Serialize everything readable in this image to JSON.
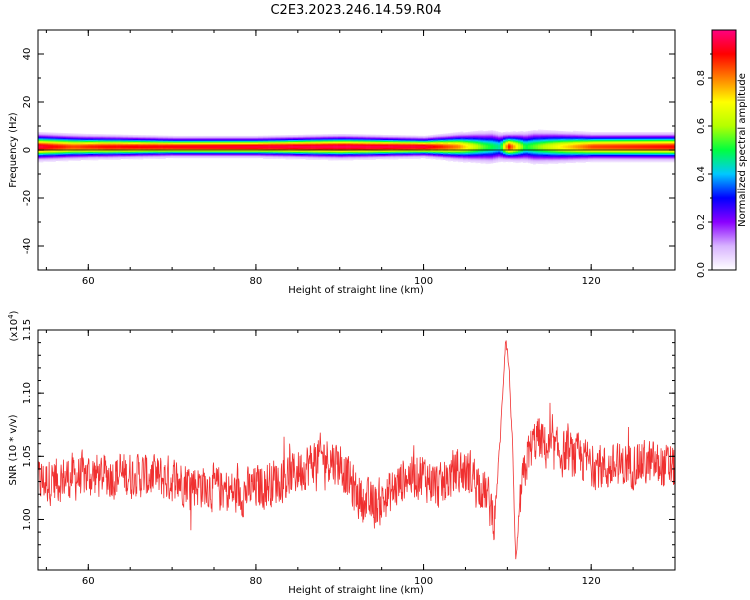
{
  "title": "C2E3.2023.246.14.59.R04",
  "chart_data": [
    {
      "type": "heatmap",
      "xlabel": "Height of straight line (km)",
      "ylabel": "Frequency (Hz)",
      "xlim": [
        54,
        130
      ],
      "ylim": [
        -50,
        50
      ],
      "xticks": [
        60,
        80,
        100,
        120
      ],
      "yticks": [
        40,
        20,
        0,
        -20,
        -40
      ],
      "colorbar": {
        "label": "Normalized spectral amplitude",
        "range": [
          0,
          1
        ],
        "ticks": [
          0.0,
          0.2,
          0.4,
          0.6,
          0.8
        ],
        "tick_labels": [
          "0.0",
          "0.2",
          "0.4",
          "0.6",
          "0.8"
        ],
        "colormap": [
          "#ffffff",
          "#d8b4ff",
          "#8a00ff",
          "#0000ff",
          "#00c8ff",
          "#00ff40",
          "#b4ff00",
          "#ffff00",
          "#ff8000",
          "#ff0000",
          "#ff0080"
        ]
      },
      "band_center_hz": 1.5,
      "band_halfwidth_hz": [
        [
          54,
          4
        ],
        [
          60,
          3.5
        ],
        [
          70,
          3
        ],
        [
          80,
          3
        ],
        [
          90,
          3.5
        ],
        [
          100,
          3
        ],
        [
          104,
          4
        ],
        [
          108,
          5
        ],
        [
          110,
          4
        ],
        [
          113,
          5
        ],
        [
          120,
          4
        ],
        [
          130,
          4
        ]
      ],
      "ridge_peak_amplitude": [
        [
          54,
          0.95
        ],
        [
          58,
          0.85
        ],
        [
          62,
          0.9
        ],
        [
          70,
          0.92
        ],
        [
          80,
          0.95
        ],
        [
          90,
          0.97
        ],
        [
          100,
          0.95
        ],
        [
          104,
          0.8
        ],
        [
          107,
          0.55
        ],
        [
          109,
          0.45
        ],
        [
          110,
          0.9
        ],
        [
          112,
          0.5
        ],
        [
          116,
          0.7
        ],
        [
          120,
          0.85
        ],
        [
          130,
          0.9
        ]
      ]
    },
    {
      "type": "line",
      "xlabel": "Height of straight line (km)",
      "ylabel": "SNR (10 * v/v)",
      "y_multiplier": "(x10",
      "y_multiplier_exp": "4",
      "y_multiplier_close": ")",
      "xlim": [
        54,
        130
      ],
      "ylim": [
        0.96,
        1.15
      ],
      "xticks": [
        60,
        80,
        100,
        120
      ],
      "yticks": [
        1.0,
        1.05,
        1.1,
        1.15
      ],
      "ytick_labels": [
        "1.00",
        "1.05",
        "1.10",
        "1.15"
      ],
      "color": "#f03030",
      "trend": [
        [
          54,
          1.03
        ],
        [
          60,
          1.035
        ],
        [
          66,
          1.035
        ],
        [
          72,
          1.03
        ],
        [
          78,
          1.02
        ],
        [
          80,
          1.025
        ],
        [
          84,
          1.035
        ],
        [
          88,
          1.05
        ],
        [
          90,
          1.045
        ],
        [
          92,
          1.02
        ],
        [
          94,
          1.01
        ],
        [
          96,
          1.02
        ],
        [
          98,
          1.035
        ],
        [
          100,
          1.035
        ],
        [
          102,
          1.025
        ],
        [
          104,
          1.04
        ],
        [
          106,
          1.035
        ],
        [
          107.5,
          1.02
        ],
        [
          108.5,
          1.0
        ],
        [
          109.2,
          1.07
        ],
        [
          109.8,
          1.145
        ],
        [
          110.2,
          1.12
        ],
        [
          110.6,
          1.06
        ],
        [
          111.0,
          0.965
        ],
        [
          111.6,
          1.02
        ],
        [
          112.4,
          1.05
        ],
        [
          113.5,
          1.065
        ],
        [
          115,
          1.055
        ],
        [
          118,
          1.05
        ],
        [
          122,
          1.04
        ],
        [
          126,
          1.045
        ],
        [
          130,
          1.04
        ]
      ],
      "noise_amplitude": 0.022
    }
  ]
}
